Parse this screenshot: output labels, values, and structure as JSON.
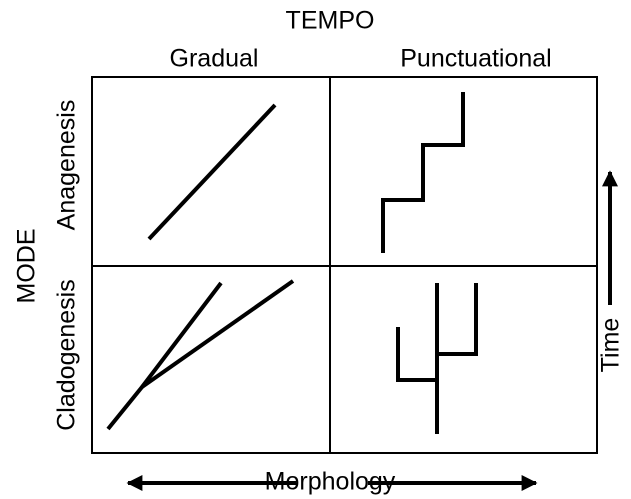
{
  "header": {
    "title": "TEMPO"
  },
  "columns": [
    "Gradual",
    "Punctuational"
  ],
  "rows": [
    "Anagenesis",
    "Cladogenesis"
  ],
  "row_axis": "MODE",
  "x_axis": "Morphology",
  "y_axis": "Time"
}
